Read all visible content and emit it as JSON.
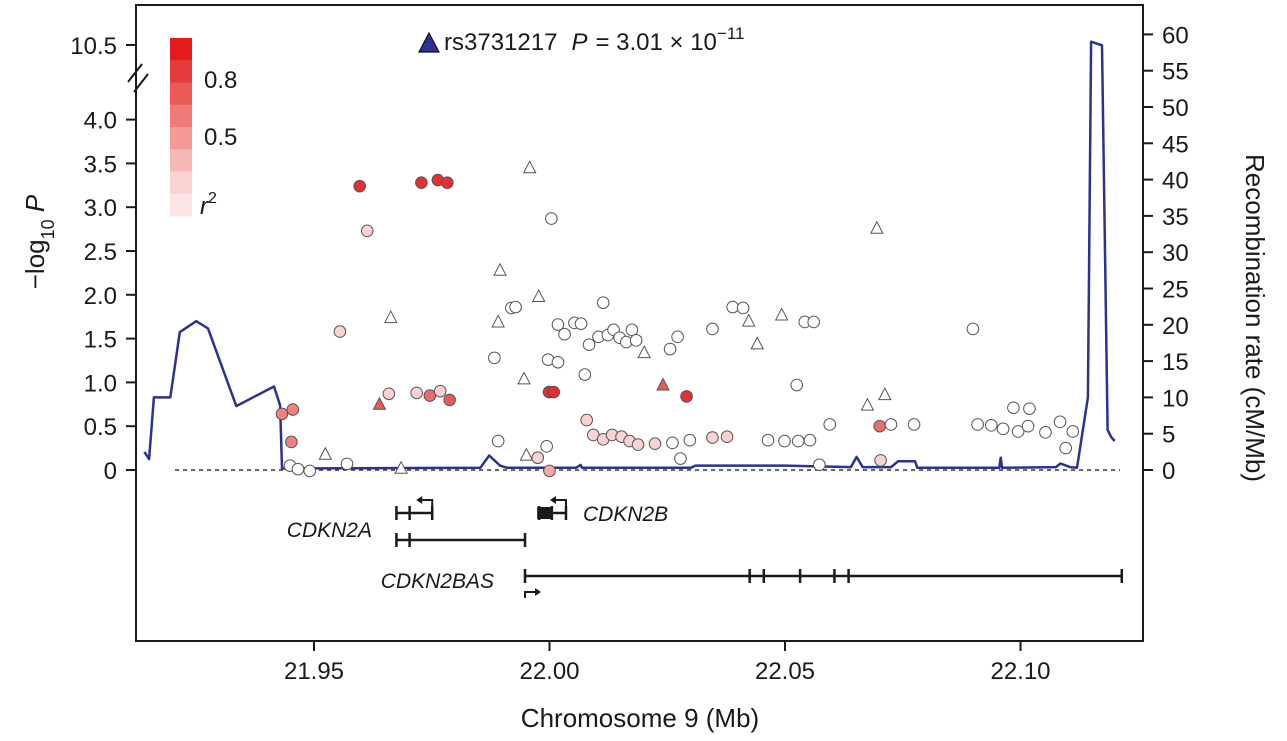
{
  "chart_data": {
    "type": "scatter",
    "title": "",
    "lead_snp": {
      "marker": "triangle",
      "color": "#2e3192",
      "name": "rs3731217",
      "p_prefix": "P",
      "p_equals": "= 3.01 × 10",
      "p_exponent": "−11",
      "value": 10.52
    },
    "x_axis": {
      "label": "Chromosome 9 (Mb)",
      "range": [
        21.913,
        22.123
      ],
      "ticks": [
        "21.95",
        "22.00",
        "22.05",
        "22.10"
      ]
    },
    "y_axis_left": {
      "label_prefix": "−log",
      "label_sub": "10",
      "label_suffix": " P",
      "range": [
        0,
        4.0
      ],
      "ticks": [
        "0",
        "0.5",
        "1.0",
        "1.5",
        "2.0",
        "2.5",
        "3.0",
        "3.5",
        "4.0"
      ],
      "break_label": "10.5"
    },
    "y_axis_right": {
      "label": "Recombination rate (cM/Mb)",
      "range": [
        0,
        60
      ],
      "ticks": [
        "0",
        "5",
        "10",
        "15",
        "20",
        "25",
        "30",
        "35",
        "40",
        "45",
        "50",
        "55",
        "60"
      ]
    },
    "legend": {
      "title": "r²",
      "title_base": "r",
      "title_sup": "2",
      "labels": [
        "0.8",
        "0.5"
      ],
      "colors": [
        "#e41a1c",
        "#e63b3a",
        "#eb5a58",
        "#ef7a78",
        "#f39a98",
        "#f6b8b6",
        "#f9d2d1",
        "#fce6e5"
      ]
    },
    "colors": {
      "high": "#e31a1c",
      "mid": "#ef8a8a",
      "low": "#f7dcdc",
      "recomb_line": "#2e3192"
    },
    "points": [
      {
        "x": 21.9597,
        "y": 3.24,
        "r2": 0.9,
        "shape": "circle"
      },
      {
        "x": 21.9728,
        "y": 3.28,
        "r2": 0.9,
        "shape": "circle"
      },
      {
        "x": 21.9763,
        "y": 3.31,
        "r2": 0.9,
        "shape": "circle"
      },
      {
        "x": 21.9783,
        "y": 3.28,
        "r2": 0.9,
        "shape": "circle"
      },
      {
        "x": 21.9613,
        "y": 2.73,
        "r2": 0.1,
        "shape": "circle"
      },
      {
        "x": 21.9555,
        "y": 1.58,
        "r2": 0.1,
        "shape": "circle"
      },
      {
        "x": 21.9663,
        "y": 1.74,
        "r2": 0.05,
        "shape": "triangle"
      },
      {
        "x": 21.9639,
        "y": 0.75,
        "r2": 0.7,
        "shape": "triangle"
      },
      {
        "x": 21.9659,
        "y": 0.87,
        "r2": 0.1,
        "shape": "circle"
      },
      {
        "x": 21.9718,
        "y": 0.88,
        "r2": 0.1,
        "shape": "circle"
      },
      {
        "x": 21.9746,
        "y": 0.85,
        "r2": 0.6,
        "shape": "circle"
      },
      {
        "x": 21.9768,
        "y": 0.9,
        "r2": 0.1,
        "shape": "circle"
      },
      {
        "x": 21.9788,
        "y": 0.8,
        "r2": 0.7,
        "shape": "circle"
      },
      {
        "x": 21.9432,
        "y": 0.64,
        "r2": 0.5,
        "shape": "circle"
      },
      {
        "x": 21.9455,
        "y": 0.69,
        "r2": 0.5,
        "shape": "circle"
      },
      {
        "x": 21.9452,
        "y": 0.32,
        "r2": 0.5,
        "shape": "circle"
      },
      {
        "x": 21.9449,
        "y": 0.05,
        "r2": 0.05,
        "shape": "circle"
      },
      {
        "x": 21.9466,
        "y": 0.01,
        "r2": 0.05,
        "shape": "circle"
      },
      {
        "x": 21.9491,
        "y": -0.01,
        "r2": 0.05,
        "shape": "circle"
      },
      {
        "x": 21.9524,
        "y": 0.18,
        "r2": 0.05,
        "shape": "triangle"
      },
      {
        "x": 21.957,
        "y": 0.07,
        "r2": 0.05,
        "shape": "circle"
      },
      {
        "x": 21.9685,
        "y": 0.02,
        "r2": 0.05,
        "shape": "triangle"
      },
      {
        "x": 21.9958,
        "y": 3.45,
        "r2": 0.05,
        "shape": "triangle"
      },
      {
        "x": 22.0004,
        "y": 2.87,
        "r2": 0.05,
        "shape": "circle"
      },
      {
        "x": 21.9895,
        "y": 2.28,
        "r2": 0.05,
        "shape": "triangle"
      },
      {
        "x": 21.9977,
        "y": 1.98,
        "r2": 0.05,
        "shape": "triangle"
      },
      {
        "x": 21.9919,
        "y": 1.85,
        "r2": 0.05,
        "shape": "circle"
      },
      {
        "x": 21.9928,
        "y": 1.86,
        "r2": 0.05,
        "shape": "circle"
      },
      {
        "x": 21.9891,
        "y": 1.69,
        "r2": 0.05,
        "shape": "triangle"
      },
      {
        "x": 21.9883,
        "y": 1.28,
        "r2": 0.05,
        "shape": "circle"
      },
      {
        "x": 21.9946,
        "y": 1.04,
        "r2": 0.05,
        "shape": "triangle"
      },
      {
        "x": 21.9891,
        "y": 0.33,
        "r2": 0.05,
        "shape": "circle"
      },
      {
        "x": 21.9951,
        "y": 0.17,
        "r2": 0.05,
        "shape": "triangle"
      },
      {
        "x": 21.9975,
        "y": 0.14,
        "r2": 0.1,
        "shape": "circle"
      },
      {
        "x": 21.9994,
        "y": 0.27,
        "r2": 0.05,
        "shape": "circle"
      },
      {
        "x": 22.0,
        "y": -0.01,
        "r2": 0.3,
        "shape": "circle"
      },
      {
        "x": 21.9999,
        "y": 0.89,
        "r2": 0.9,
        "shape": "circle"
      },
      {
        "x": 22.0009,
        "y": 0.89,
        "r2": 0.9,
        "shape": "circle"
      },
      {
        "x": 21.9997,
        "y": 1.26,
        "r2": 0.05,
        "shape": "circle"
      },
      {
        "x": 22.0018,
        "y": 1.66,
        "r2": 0.05,
        "shape": "circle"
      },
      {
        "x": 22.0032,
        "y": 1.55,
        "r2": 0.05,
        "shape": "circle"
      },
      {
        "x": 22.0018,
        "y": 1.23,
        "r2": 0.05,
        "shape": "circle"
      },
      {
        "x": 22.0053,
        "y": 1.68,
        "r2": 0.05,
        "shape": "circle"
      },
      {
        "x": 22.0067,
        "y": 1.67,
        "r2": 0.05,
        "shape": "circle"
      },
      {
        "x": 22.0075,
        "y": 1.09,
        "r2": 0.05,
        "shape": "circle"
      },
      {
        "x": 22.0084,
        "y": 1.43,
        "r2": 0.05,
        "shape": "circle"
      },
      {
        "x": 22.0104,
        "y": 1.52,
        "r2": 0.05,
        "shape": "circle"
      },
      {
        "x": 22.0114,
        "y": 1.91,
        "r2": 0.05,
        "shape": "circle"
      },
      {
        "x": 22.0124,
        "y": 1.54,
        "r2": 0.05,
        "shape": "circle"
      },
      {
        "x": 22.0136,
        "y": 1.6,
        "r2": 0.05,
        "shape": "circle"
      },
      {
        "x": 22.0149,
        "y": 1.51,
        "r2": 0.05,
        "shape": "circle"
      },
      {
        "x": 22.0163,
        "y": 1.46,
        "r2": 0.05,
        "shape": "circle"
      },
      {
        "x": 22.0175,
        "y": 1.6,
        "r2": 0.05,
        "shape": "circle"
      },
      {
        "x": 22.0184,
        "y": 1.48,
        "r2": 0.05,
        "shape": "circle"
      },
      {
        "x": 22.0201,
        "y": 1.34,
        "r2": 0.05,
        "shape": "triangle"
      },
      {
        "x": 22.0241,
        "y": 0.97,
        "r2": 0.7,
        "shape": "triangle"
      },
      {
        "x": 22.0291,
        "y": 0.84,
        "r2": 0.9,
        "shape": "circle"
      },
      {
        "x": 22.0256,
        "y": 1.38,
        "r2": 0.05,
        "shape": "circle"
      },
      {
        "x": 22.0272,
        "y": 1.52,
        "r2": 0.05,
        "shape": "circle"
      },
      {
        "x": 22.0346,
        "y": 1.61,
        "r2": 0.05,
        "shape": "circle"
      },
      {
        "x": 22.0389,
        "y": 1.86,
        "r2": 0.05,
        "shape": "circle"
      },
      {
        "x": 22.0411,
        "y": 1.85,
        "r2": 0.05,
        "shape": "circle"
      },
      {
        "x": 22.0423,
        "y": 1.7,
        "r2": 0.05,
        "shape": "triangle"
      },
      {
        "x": 22.0441,
        "y": 1.44,
        "r2": 0.05,
        "shape": "triangle"
      },
      {
        "x": 22.0493,
        "y": 1.77,
        "r2": 0.05,
        "shape": "triangle"
      },
      {
        "x": 22.0542,
        "y": 1.69,
        "r2": 0.05,
        "shape": "circle"
      },
      {
        "x": 22.0561,
        "y": 1.69,
        "r2": 0.05,
        "shape": "circle"
      },
      {
        "x": 22.0525,
        "y": 0.97,
        "r2": 0.05,
        "shape": "circle"
      },
      {
        "x": 22.0079,
        "y": 0.57,
        "r2": 0.1,
        "shape": "circle"
      },
      {
        "x": 22.0093,
        "y": 0.4,
        "r2": 0.1,
        "shape": "circle"
      },
      {
        "x": 22.0114,
        "y": 0.35,
        "r2": 0.1,
        "shape": "circle"
      },
      {
        "x": 22.0133,
        "y": 0.4,
        "r2": 0.1,
        "shape": "circle"
      },
      {
        "x": 22.0153,
        "y": 0.38,
        "r2": 0.1,
        "shape": "circle"
      },
      {
        "x": 22.017,
        "y": 0.33,
        "r2": 0.1,
        "shape": "circle"
      },
      {
        "x": 22.0188,
        "y": 0.29,
        "r2": 0.1,
        "shape": "circle"
      },
      {
        "x": 22.0224,
        "y": 0.3,
        "r2": 0.1,
        "shape": "circle"
      },
      {
        "x": 22.0261,
        "y": 0.31,
        "r2": 0.05,
        "shape": "circle"
      },
      {
        "x": 22.0278,
        "y": 0.13,
        "r2": 0.05,
        "shape": "circle"
      },
      {
        "x": 22.0298,
        "y": 0.34,
        "r2": 0.05,
        "shape": "circle"
      },
      {
        "x": 22.0346,
        "y": 0.37,
        "r2": 0.1,
        "shape": "circle"
      },
      {
        "x": 22.0377,
        "y": 0.38,
        "r2": 0.1,
        "shape": "circle"
      },
      {
        "x": 22.0464,
        "y": 0.34,
        "r2": 0.05,
        "shape": "circle"
      },
      {
        "x": 22.0499,
        "y": 0.33,
        "r2": 0.05,
        "shape": "circle"
      },
      {
        "x": 22.0528,
        "y": 0.33,
        "r2": 0.05,
        "shape": "circle"
      },
      {
        "x": 22.0553,
        "y": 0.34,
        "r2": 0.05,
        "shape": "circle"
      },
      {
        "x": 22.0595,
        "y": 0.52,
        "r2": 0.05,
        "shape": "circle"
      },
      {
        "x": 22.0573,
        "y": 0.06,
        "r2": 0.05,
        "shape": "circle"
      },
      {
        "x": 22.0675,
        "y": 0.74,
        "r2": 0.05,
        "shape": "triangle"
      },
      {
        "x": 22.0695,
        "y": 2.76,
        "r2": 0.05,
        "shape": "triangle"
      },
      {
        "x": 22.0712,
        "y": 0.86,
        "r2": 0.05,
        "shape": "triangle"
      },
      {
        "x": 22.0701,
        "y": 0.5,
        "r2": 0.6,
        "shape": "circle"
      },
      {
        "x": 22.0725,
        "y": 0.52,
        "r2": 0.05,
        "shape": "circle"
      },
      {
        "x": 22.0774,
        "y": 0.52,
        "r2": 0.05,
        "shape": "circle"
      },
      {
        "x": 22.0703,
        "y": 0.11,
        "r2": 0.1,
        "shape": "circle"
      },
      {
        "x": 22.0899,
        "y": 1.61,
        "r2": 0.05,
        "shape": "circle"
      },
      {
        "x": 22.0909,
        "y": 0.52,
        "r2": 0.05,
        "shape": "circle"
      },
      {
        "x": 22.0938,
        "y": 0.51,
        "r2": 0.05,
        "shape": "circle"
      },
      {
        "x": 22.0963,
        "y": 0.47,
        "r2": 0.05,
        "shape": "circle"
      },
      {
        "x": 22.0985,
        "y": 0.71,
        "r2": 0.05,
        "shape": "circle"
      },
      {
        "x": 22.1019,
        "y": 0.7,
        "r2": 0.05,
        "shape": "circle"
      },
      {
        "x": 22.0995,
        "y": 0.44,
        "r2": 0.05,
        "shape": "circle"
      },
      {
        "x": 22.1016,
        "y": 0.5,
        "r2": 0.05,
        "shape": "circle"
      },
      {
        "x": 22.1053,
        "y": 0.43,
        "r2": 0.05,
        "shape": "circle"
      },
      {
        "x": 22.1084,
        "y": 0.55,
        "r2": 0.05,
        "shape": "circle"
      },
      {
        "x": 22.1111,
        "y": 0.44,
        "r2": 0.05,
        "shape": "circle"
      },
      {
        "x": 22.1096,
        "y": 0.25,
        "r2": 0.05,
        "shape": "circle"
      }
    ],
    "recombination": [
      [
        21.914,
        2.5
      ],
      [
        21.915,
        1.5
      ],
      [
        21.916,
        10
      ],
      [
        21.9195,
        10
      ],
      [
        21.9215,
        19
      ],
      [
        21.925,
        20.5
      ],
      [
        21.9275,
        19.5
      ],
      [
        21.9335,
        8.8
      ],
      [
        21.9415,
        11.5
      ],
      [
        21.9428,
        8.9
      ],
      [
        21.9432,
        0.2
      ],
      [
        21.9853,
        0.3
      ],
      [
        21.9872,
        2.0
      ],
      [
        21.9895,
        0.6
      ],
      [
        21.991,
        0.3
      ],
      [
        22.0056,
        0.3
      ],
      [
        22.0066,
        0.7
      ],
      [
        22.0069,
        0.3
      ],
      [
        22.03,
        0.3
      ],
      [
        22.031,
        0.6
      ],
      [
        22.05,
        0.6
      ],
      [
        22.064,
        0.4
      ],
      [
        22.0652,
        1.8
      ],
      [
        22.0665,
        0.4
      ],
      [
        22.0725,
        0.4
      ],
      [
        22.074,
        1.2
      ],
      [
        22.0776,
        1.2
      ],
      [
        22.0781,
        0.3
      ],
      [
        22.0955,
        0.3
      ],
      [
        22.0958,
        1.7
      ],
      [
        22.0961,
        0.3
      ],
      [
        22.1075,
        0.4
      ],
      [
        22.1085,
        0.9
      ],
      [
        22.1105,
        0.4
      ],
      [
        22.112,
        0.3
      ],
      [
        22.1143,
        10
      ],
      [
        22.115,
        59
      ],
      [
        22.1173,
        58.5
      ],
      [
        22.1185,
        5.5
      ],
      [
        22.1193,
        4.5
      ],
      [
        22.12,
        4.0
      ]
    ],
    "genes": [
      {
        "name": "CDKN2A",
        "label_side": "left",
        "transcripts": [
          {
            "start": 21.9675,
            "end": 21.9751,
            "exons": [
              21.9675,
              21.9703,
              21.9751
            ],
            "lane": 0
          },
          {
            "start": 21.9675,
            "end": 21.9948,
            "exons": [
              21.9675,
              21.9703,
              21.9948
            ],
            "lane": 1
          }
        ],
        "strand": "minus"
      },
      {
        "name": "CDKN2B",
        "label_side": "right",
        "transcripts": [
          {
            "start": 21.9978,
            "end": 22.0035,
            "exons": [
              21.9978,
              22.0005,
              22.0035
            ],
            "lane": 0
          }
        ],
        "strand": "minus"
      },
      {
        "name": "CDKN2BAS",
        "label_side": "left",
        "transcripts": [
          {
            "start": 21.9948,
            "end": 22.1215,
            "exons": [
              21.9948,
              22.0425,
              22.0455,
              22.0532,
              22.0605,
              22.0635,
              22.1215
            ],
            "lane": 2
          }
        ],
        "strand": "plus"
      }
    ]
  }
}
